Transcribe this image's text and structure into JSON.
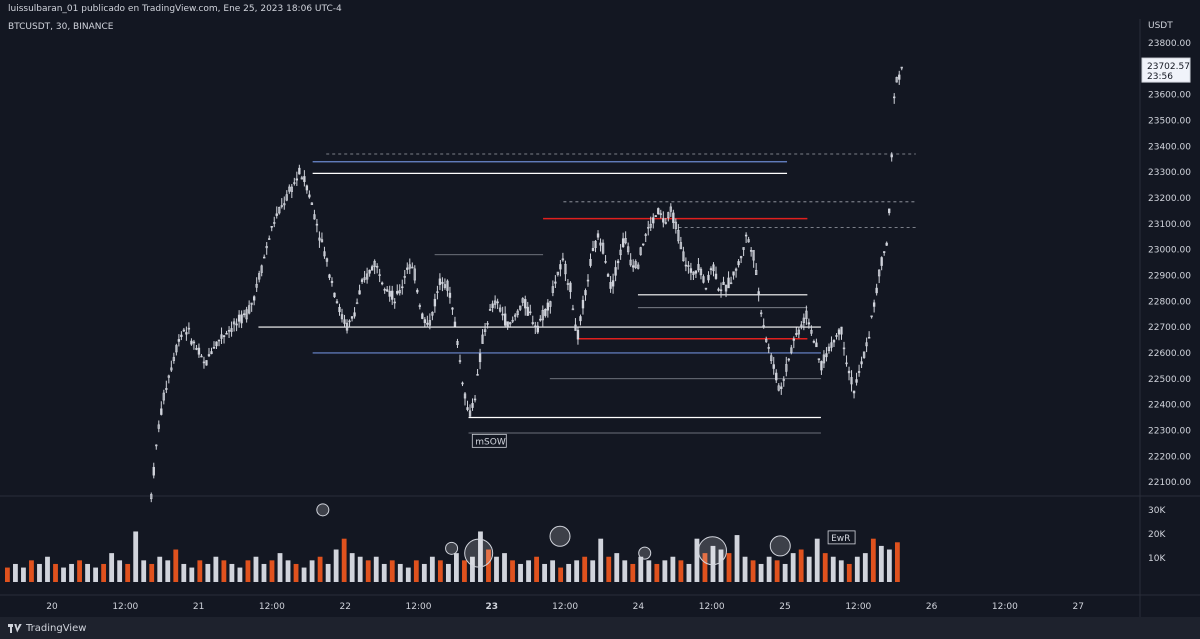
{
  "header": {
    "published_by": "luissulbaran_01 publicado en TradingView.com, Ene 25, 2023 18:06 UTC-4",
    "symbol": "BTCUSDT, 30, BINANCE"
  },
  "footer": {
    "brand": "TradingView"
  },
  "colors": {
    "background": "#131722",
    "candle": "#d1d4dc",
    "support_line": "#ffffff",
    "blue_line": "#6c8ad1",
    "red_line": "#e0201e",
    "volume_up": "#d1d4dc",
    "volume_down": "#e0521e"
  },
  "chart_data": {
    "type": "candlestick",
    "symbol": "BTCUSDT",
    "interval": "30",
    "exchange": "BINANCE",
    "currency": "USDT",
    "last_price": "23702.57",
    "countdown": "23:56",
    "y_ticks": [
      "23800.00",
      "23700.00",
      "23600.00",
      "23500.00",
      "23400.00",
      "23300.00",
      "23200.00",
      "23100.00",
      "23000.00",
      "22900.00",
      "22800.00",
      "22700.00",
      "22600.00",
      "22500.00",
      "22400.00",
      "22300.00",
      "22200.00",
      "22100.00"
    ],
    "ylim": [
      22050,
      23850
    ],
    "x_ticks": [
      {
        "label": "20",
        "bold": false
      },
      {
        "label": "12:00",
        "bold": false
      },
      {
        "label": "21",
        "bold": false
      },
      {
        "label": "12:00",
        "bold": false
      },
      {
        "label": "22",
        "bold": false
      },
      {
        "label": "12:00",
        "bold": false
      },
      {
        "label": "23",
        "bold": true
      },
      {
        "label": "12:00",
        "bold": false
      },
      {
        "label": "24",
        "bold": false
      },
      {
        "label": "12:00",
        "bold": false
      },
      {
        "label": "25",
        "bold": false
      },
      {
        "label": "12:00",
        "bold": false
      },
      {
        "label": "26",
        "bold": false
      },
      {
        "label": "12:00",
        "bold": false
      },
      {
        "label": "27",
        "bold": false
      }
    ],
    "volume_ticks": [
      "30K",
      "20K",
      "10K"
    ],
    "volume_ylim": [
      0,
      32000
    ],
    "price_path": [
      [
        0,
        22050
      ],
      [
        1,
        22300
      ],
      [
        2,
        22450
      ],
      [
        3,
        22550
      ],
      [
        4,
        22650
      ],
      [
        5,
        22700
      ],
      [
        6,
        22650
      ],
      [
        7,
        22600
      ],
      [
        8,
        22550
      ],
      [
        9,
        22620
      ],
      [
        10,
        22650
      ],
      [
        11,
        22680
      ],
      [
        12,
        22700
      ],
      [
        13,
        22720
      ],
      [
        14,
        22750
      ],
      [
        15,
        22800
      ],
      [
        16,
        22900
      ],
      [
        17,
        23000
      ],
      [
        18,
        23100
      ],
      [
        19,
        23150
      ],
      [
        20,
        23200
      ],
      [
        21,
        23250
      ],
      [
        22,
        23300
      ],
      [
        23,
        23250
      ],
      [
        24,
        23150
      ],
      [
        25,
        23050
      ],
      [
        26,
        22950
      ],
      [
        27,
        22850
      ],
      [
        28,
        22750
      ],
      [
        29,
        22700
      ],
      [
        30,
        22750
      ],
      [
        31,
        22850
      ],
      [
        32,
        22900
      ],
      [
        33,
        22950
      ],
      [
        34,
        22900
      ],
      [
        35,
        22850
      ],
      [
        36,
        22800
      ],
      [
        37,
        22850
      ],
      [
        38,
        22950
      ],
      [
        39,
        22900
      ],
      [
        40,
        22750
      ],
      [
        41,
        22700
      ],
      [
        42,
        22800
      ],
      [
        43,
        22900
      ],
      [
        44,
        22850
      ],
      [
        45,
        22700
      ],
      [
        46,
        22500
      ],
      [
        47,
        22350
      ],
      [
        48,
        22450
      ],
      [
        49,
        22650
      ],
      [
        50,
        22750
      ],
      [
        51,
        22800
      ],
      [
        52,
        22750
      ],
      [
        53,
        22700
      ],
      [
        54,
        22750
      ],
      [
        55,
        22800
      ],
      [
        56,
        22750
      ],
      [
        57,
        22700
      ],
      [
        58,
        22750
      ],
      [
        59,
        22800
      ],
      [
        60,
        22900
      ],
      [
        61,
        22950
      ],
      [
        62,
        22850
      ],
      [
        63,
        22650
      ],
      [
        64,
        22800
      ],
      [
        65,
        22950
      ],
      [
        66,
        23050
      ],
      [
        67,
        23000
      ],
      [
        68,
        22850
      ],
      [
        69,
        22950
      ],
      [
        70,
        23050
      ],
      [
        71,
        22950
      ],
      [
        72,
        22950
      ],
      [
        73,
        23050
      ],
      [
        74,
        23100
      ],
      [
        75,
        23150
      ],
      [
        76,
        23100
      ],
      [
        77,
        23150
      ],
      [
        78,
        23050
      ],
      [
        79,
        22950
      ],
      [
        80,
        22900
      ],
      [
        81,
        22950
      ],
      [
        82,
        22850
      ],
      [
        83,
        22950
      ],
      [
        84,
        22850
      ],
      [
        85,
        22850
      ],
      [
        86,
        22900
      ],
      [
        87,
        22950
      ],
      [
        88,
        23050
      ],
      [
        89,
        23000
      ],
      [
        90,
        22800
      ],
      [
        91,
        22650
      ],
      [
        92,
        22550
      ],
      [
        93,
        22450
      ],
      [
        94,
        22550
      ],
      [
        95,
        22650
      ],
      [
        96,
        22700
      ],
      [
        97,
        22750
      ],
      [
        98,
        22650
      ],
      [
        99,
        22550
      ],
      [
        100,
        22600
      ],
      [
        101,
        22650
      ],
      [
        102,
        22700
      ],
      [
        103,
        22550
      ],
      [
        104,
        22450
      ],
      [
        105,
        22550
      ],
      [
        106,
        22650
      ],
      [
        107,
        22800
      ],
      [
        108,
        22950
      ],
      [
        109,
        23050
      ],
      [
        110,
        23650
      ],
      [
        111,
        23702.57
      ]
    ],
    "volume_profile": [
      4,
      5,
      4,
      6,
      5,
      7,
      5,
      4,
      5,
      6,
      5,
      4,
      5,
      8,
      6,
      5,
      14,
      6,
      5,
      7,
      6,
      9,
      5,
      4,
      6,
      5,
      7,
      6,
      5,
      4,
      6,
      7,
      5,
      6,
      8,
      6,
      5,
      4,
      6,
      7,
      5,
      9,
      12,
      8,
      7,
      6,
      7,
      5,
      6,
      5,
      4,
      6,
      5,
      7,
      6,
      5,
      8,
      6,
      7,
      14,
      9,
      7,
      8,
      6,
      5,
      6,
      7,
      5,
      6,
      4,
      5,
      6,
      7,
      6,
      12,
      7,
      8,
      6,
      5,
      7,
      6,
      5,
      6,
      7,
      6,
      5,
      12,
      8,
      10,
      9,
      8,
      13,
      7,
      6,
      5,
      7,
      6,
      5,
      8,
      9,
      7,
      12,
      8,
      7,
      6,
      5,
      7,
      8,
      12,
      10,
      9,
      11
    ],
    "levels": [
      {
        "price": 23340,
        "x0": 0.24,
        "x1": 0.94,
        "style": "blue"
      },
      {
        "price": 23295,
        "x0": 0.24,
        "x1": 0.94,
        "style": "white"
      },
      {
        "price": 23370,
        "x0": 0.26,
        "x1": 1.13,
        "style": "dashed"
      },
      {
        "price": 22980,
        "x0": 0.42,
        "x1": 0.58,
        "style": "thin"
      },
      {
        "price": 23185,
        "x0": 0.61,
        "x1": 1.13,
        "style": "dashed"
      },
      {
        "price": 23120,
        "x0": 0.58,
        "x1": 0.97,
        "style": "red"
      },
      {
        "price": 23085,
        "x0": 0.78,
        "x1": 1.13,
        "style": "dashed"
      },
      {
        "price": 22825,
        "x0": 0.72,
        "x1": 0.97,
        "style": "white"
      },
      {
        "price": 22775,
        "x0": 0.72,
        "x1": 0.97,
        "style": "thin"
      },
      {
        "price": 22700,
        "x0": 0.16,
        "x1": 0.99,
        "style": "white"
      },
      {
        "price": 22655,
        "x0": 0.63,
        "x1": 0.97,
        "style": "red"
      },
      {
        "price": 22600,
        "x0": 0.24,
        "x1": 0.99,
        "style": "blue"
      },
      {
        "price": 22500,
        "x0": 0.59,
        "x1": 0.99,
        "style": "thin"
      },
      {
        "price": 22350,
        "x0": 0.47,
        "x1": 0.99,
        "style": "white"
      },
      {
        "price": 22290,
        "x0": 0.47,
        "x1": 0.99,
        "style": "thin"
      }
    ],
    "annotations": [
      {
        "text": "mSOW",
        "price": 22250,
        "x": 0.48
      },
      {
        "text": "EwR",
        "volume": 17500,
        "x": 1.005
      }
    ],
    "volume_circles": [
      {
        "x": 0.255,
        "volume": 30000,
        "size": "small"
      },
      {
        "x": 0.445,
        "volume": 14000,
        "size": "small"
      },
      {
        "x": 0.485,
        "volume": 12000,
        "size": "large"
      },
      {
        "x": 0.605,
        "volume": 19000,
        "size": "medium"
      },
      {
        "x": 0.73,
        "volume": 12000,
        "size": "small"
      },
      {
        "x": 0.83,
        "volume": 13000,
        "size": "large"
      },
      {
        "x": 0.93,
        "volume": 15000,
        "size": "medium"
      }
    ]
  }
}
